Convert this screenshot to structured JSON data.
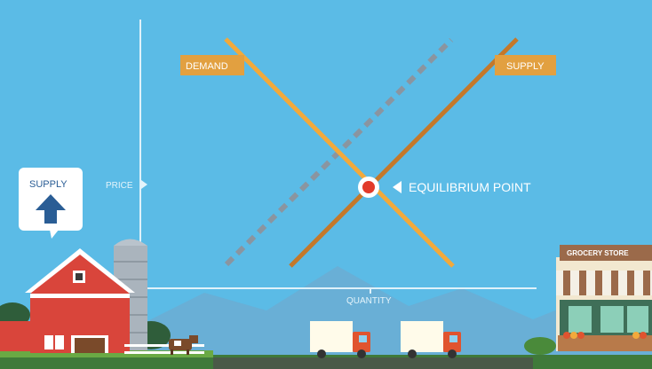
{
  "diagram": {
    "demand_label": "DEMAND",
    "supply_label": "SUPPLY",
    "price_label": "PRICE",
    "quantity_label": "QUANTITY",
    "equilibrium_label": "EQUILIBRIUM POINT",
    "supply_badge_label": "SUPPLY",
    "grocery_store_label": "GROCERY STORE"
  },
  "colors": {
    "sky": "#5bbbe6",
    "demand_line": "#f2a93b",
    "supply_line": "#c4782a",
    "label_bg": "#e2a040",
    "axis": "#d8eef8",
    "equilibrium_dot": "#e23a2a",
    "barn_red": "#d9453b",
    "ground": "#3f7a3a"
  },
  "icons": {
    "supply_badge": "arrow-up-icon",
    "equilibrium_marker": "triangle-left-icon",
    "price_marker": "triangle-right-icon"
  }
}
